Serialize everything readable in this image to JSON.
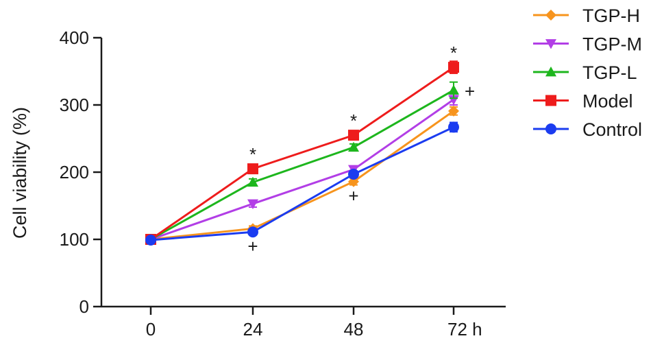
{
  "chart_data": {
    "type": "line",
    "title": "",
    "xlabel": "",
    "ylabel": "Cell viability (%)",
    "x": [
      0,
      24,
      48,
      72
    ],
    "x_tick_labels": [
      "0",
      "24",
      "48",
      "72 h"
    ],
    "y_ticks": [
      0,
      100,
      200,
      300,
      400
    ],
    "ylim": [
      0,
      400
    ],
    "grid": false,
    "legend_position": "top-right",
    "series": [
      {
        "name": "TGP-H",
        "color": "#f7941d",
        "marker": "diamond",
        "values": [
          100,
          116,
          186,
          291
        ],
        "errors": [
          3,
          4,
          5,
          6
        ]
      },
      {
        "name": "TGP-M",
        "color": "#b23ee6",
        "marker": "triangle-down",
        "values": [
          100,
          153,
          204,
          308
        ],
        "errors": [
          3,
          5,
          5,
          8
        ]
      },
      {
        "name": "TGP-L",
        "color": "#1db61d",
        "marker": "triangle-up",
        "values": [
          100,
          185,
          237,
          322
        ],
        "errors": [
          3,
          5,
          5,
          12
        ]
      },
      {
        "name": "Model",
        "color": "#ee1c1c",
        "marker": "square",
        "values": [
          100,
          205,
          255,
          356
        ],
        "errors": [
          3,
          5,
          5,
          9
        ]
      },
      {
        "name": "Control",
        "color": "#1b3cf0",
        "marker": "circle",
        "values": [
          99,
          111,
          197,
          267
        ],
        "errors": [
          3,
          4,
          5,
          7
        ]
      }
    ],
    "annotations": [
      {
        "text": "*",
        "x": 24,
        "y": 205,
        "anchor": "above"
      },
      {
        "text": "*",
        "x": 48,
        "y": 255,
        "anchor": "above"
      },
      {
        "text": "*",
        "x": 72,
        "y": 356,
        "anchor": "above"
      },
      {
        "text": "+",
        "x": 24,
        "y": 111,
        "anchor": "below"
      },
      {
        "text": "+",
        "x": 48,
        "y": 186,
        "anchor": "below"
      },
      {
        "text": "+",
        "x": 72,
        "y": 291,
        "anchor": "right"
      }
    ]
  }
}
